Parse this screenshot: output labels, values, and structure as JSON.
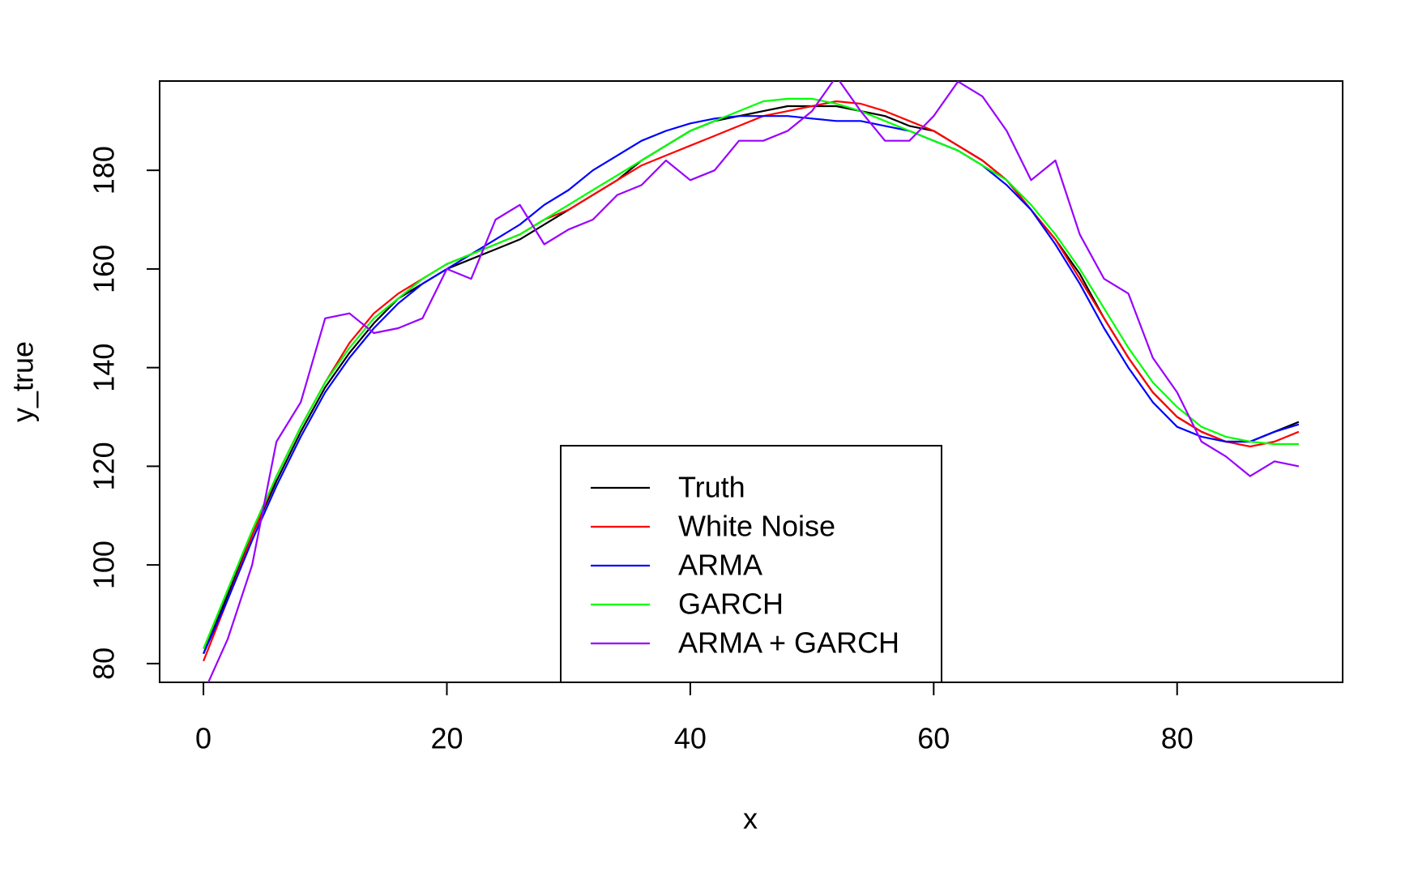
{
  "chart_data": {
    "type": "line",
    "xlabel": "x",
    "ylabel": "y_true",
    "x": [
      0,
      2,
      4,
      6,
      8,
      10,
      12,
      14,
      16,
      18,
      20,
      22,
      24,
      26,
      28,
      30,
      32,
      34,
      36,
      38,
      40,
      42,
      44,
      46,
      48,
      50,
      52,
      54,
      56,
      58,
      60,
      62,
      64,
      66,
      68,
      70,
      72,
      74,
      76,
      78,
      80,
      82,
      84,
      86,
      88,
      90
    ],
    "series": [
      {
        "name": "Truth",
        "color": "#000000",
        "values": [
          82,
          94,
          106,
          117,
          127,
          136,
          143,
          149,
          154,
          157,
          160,
          162,
          164,
          166,
          169,
          172,
          175,
          178,
          182,
          185,
          188,
          190,
          191,
          192,
          193,
          193,
          193,
          192,
          191,
          189,
          188,
          185,
          182,
          178,
          172,
          166,
          159,
          150,
          142,
          135,
          130,
          127,
          125,
          125,
          127,
          129
        ]
      },
      {
        "name": "White Noise",
        "color": "#ff0000",
        "values": [
          80.5,
          93,
          106,
          118,
          128,
          137,
          145,
          151,
          155,
          158,
          161,
          163,
          165,
          167,
          170,
          172,
          175,
          178,
          181,
          183,
          185,
          187,
          189,
          191,
          192,
          193,
          194,
          193.5,
          192,
          190,
          188,
          185,
          182,
          178,
          172,
          166,
          158,
          150,
          142,
          135,
          130,
          127,
          125,
          124,
          125,
          127
        ]
      },
      {
        "name": "ARMA",
        "color": "#0000ff",
        "values": [
          82,
          93,
          105,
          116,
          126,
          135,
          142,
          148,
          153,
          157,
          160,
          163,
          166,
          169,
          173,
          176,
          180,
          183,
          186,
          188,
          189.5,
          190.5,
          191,
          191,
          191,
          190.5,
          190,
          190,
          189,
          188,
          186,
          184,
          181,
          177,
          172,
          165,
          157,
          148,
          140,
          133,
          128,
          126,
          125,
          125,
          127,
          128.5
        ]
      },
      {
        "name": "GARCH",
        "color": "#00ff00",
        "values": [
          83,
          95,
          107,
          118,
          128,
          137,
          144,
          150,
          154,
          158,
          161,
          163,
          165,
          167,
          170,
          173,
          176,
          179,
          182,
          185,
          188,
          190,
          192,
          194,
          194.5,
          194.5,
          193.5,
          192,
          190,
          188,
          186,
          184,
          181,
          178,
          173,
          167,
          160,
          152,
          144,
          137,
          132,
          128,
          126,
          125,
          124.5,
          124.5
        ]
      },
      {
        "name": "ARMA + GARCH",
        "color": "#9900ff",
        "values": [
          74,
          85,
          100,
          125,
          133,
          150,
          151,
          147,
          148,
          150,
          160,
          158,
          170,
          173,
          165,
          168,
          170,
          175,
          177,
          182,
          178,
          180,
          186,
          186,
          188,
          192,
          199,
          192,
          186,
          186,
          191,
          198,
          195,
          188,
          178,
          182,
          167,
          158,
          155,
          142,
          135,
          125,
          122,
          118,
          121,
          120
        ]
      }
    ],
    "xlim": [
      -3.6,
      93.6
    ],
    "ylim": [
      76.2,
      198.1
    ],
    "xticks": [
      0,
      20,
      40,
      60,
      80
    ],
    "yticks": [
      80,
      100,
      120,
      140,
      160,
      180
    ],
    "legend": "bottom"
  }
}
